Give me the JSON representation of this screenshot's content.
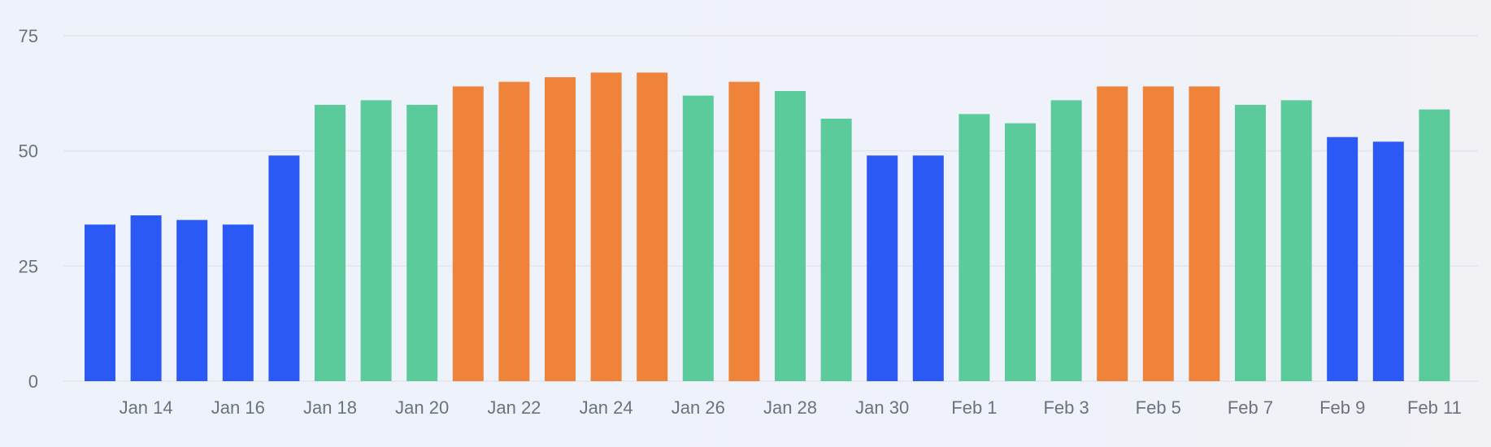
{
  "chart_data": {
    "type": "bar",
    "title": "",
    "xlabel": "",
    "ylabel": "",
    "ylim": [
      0,
      75
    ],
    "yticks": [
      "0",
      "25",
      "50",
      "75"
    ],
    "grid": true,
    "categories": [
      "Jan 13",
      "Jan 14",
      "Jan 15",
      "Jan 16",
      "Jan 17",
      "Jan 18",
      "Jan 19",
      "Jan 20",
      "Jan 21",
      "Jan 22",
      "Jan 23",
      "Jan 24",
      "Jan 25",
      "Jan 26",
      "Jan 27",
      "Jan 28",
      "Jan 29",
      "Jan 30",
      "Jan 31",
      "Feb 1",
      "Feb 2",
      "Feb 3",
      "Feb 4",
      "Feb 5",
      "Feb 6",
      "Feb 7",
      "Feb 8",
      "Feb 9",
      "Feb 10",
      "Feb 11"
    ],
    "xtick_labels": [
      "Jan 14",
      "Jan 16",
      "Jan 18",
      "Jan 20",
      "Jan 22",
      "Jan 24",
      "Jan 26",
      "Jan 28",
      "Jan 30",
      "Feb 1",
      "Feb 3",
      "Feb 5",
      "Feb 7",
      "Feb 9",
      "Feb 11"
    ],
    "values": [
      34,
      36,
      35,
      34,
      49,
      60,
      61,
      60,
      64,
      65,
      66,
      67,
      67,
      62,
      65,
      63,
      57,
      49,
      49,
      58,
      56,
      61,
      64,
      64,
      64,
      60,
      61,
      53,
      52,
      59
    ],
    "bar_colors": [
      "#2b59f5",
      "#2b59f5",
      "#2b59f5",
      "#2b59f5",
      "#2b59f5",
      "#5ccb9c",
      "#5ccb9c",
      "#5ccb9c",
      "#ef833a",
      "#ef833a",
      "#ef833a",
      "#ef833a",
      "#ef833a",
      "#5ccb9c",
      "#ef833a",
      "#5ccb9c",
      "#5ccb9c",
      "#2b59f5",
      "#2b59f5",
      "#5ccb9c",
      "#5ccb9c",
      "#5ccb9c",
      "#ef833a",
      "#ef833a",
      "#ef833a",
      "#5ccb9c",
      "#5ccb9c",
      "#2b59f5",
      "#2b59f5",
      "#5ccb9c"
    ]
  }
}
